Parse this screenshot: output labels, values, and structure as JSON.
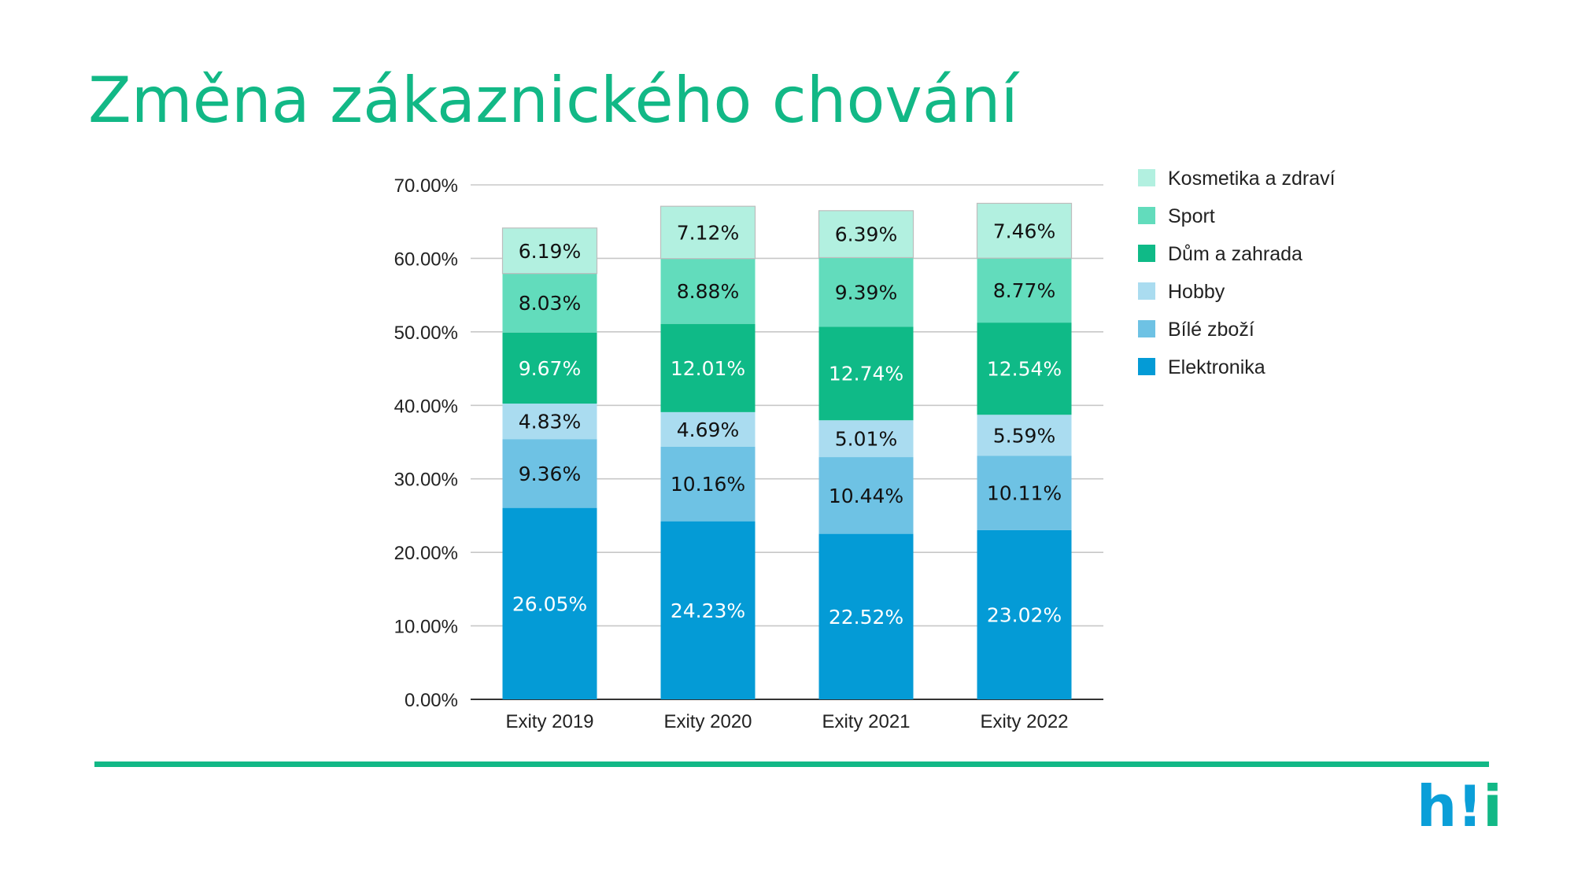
{
  "slide": {
    "title": "Změna zákaznického chování",
    "logo": {
      "h": "h",
      "bang": "!",
      "i": "i"
    }
  },
  "colors": {
    "title": "#12b886",
    "rule": "#12b886",
    "Elektronika": "#049bd6",
    "Bílé zboží": "#6ec2e4",
    "Hobby": "#aadcf0",
    "Dům a zahrada": "#0fba87",
    "Sport": "#62dcbc",
    "Kosmetika a zdraví": "#b2f0e0"
  },
  "chart_data": {
    "type": "bar",
    "stacked": true,
    "categories": [
      "Exity 2019",
      "Exity 2020",
      "Exity 2021",
      "Exity 2022"
    ],
    "series": [
      {
        "name": "Elektronika",
        "values": [
          26.05,
          24.23,
          22.52,
          23.02
        ],
        "labels": [
          "26.05%",
          "24.23%",
          "22.52%",
          "23.02%"
        ],
        "label_color": "#ffffff"
      },
      {
        "name": "Bílé zboží",
        "values": [
          9.36,
          10.16,
          10.44,
          10.11
        ],
        "labels": [
          "9.36%",
          "10.16%",
          "10.44%",
          "10.11%"
        ],
        "label_color": "#111111"
      },
      {
        "name": "Hobby",
        "values": [
          4.83,
          4.69,
          5.01,
          5.59
        ],
        "labels": [
          "4.83%",
          "4.69%",
          "5.01%",
          "5.59%"
        ],
        "label_color": "#111111"
      },
      {
        "name": "Dům a zahrada",
        "values": [
          9.67,
          12.01,
          12.74,
          12.54
        ],
        "labels": [
          "9.67%",
          "12.01%",
          "12.74%",
          "12.54%"
        ],
        "label_color": "#ffffff"
      },
      {
        "name": "Sport",
        "values": [
          8.03,
          8.88,
          9.39,
          8.77
        ],
        "labels": [
          "8.03%",
          "8.88%",
          "9.39%",
          "8.77%"
        ],
        "label_color": "#111111"
      },
      {
        "name": "Kosmetika a zdraví",
        "values": [
          6.19,
          7.12,
          6.39,
          7.46
        ],
        "labels": [
          "6.19%",
          "7.12%",
          "6.39%",
          "7.46%"
        ],
        "label_color": "#111111"
      }
    ],
    "yticks": [
      0,
      10,
      20,
      30,
      40,
      50,
      60,
      70
    ],
    "ytick_labels": [
      "0.00%",
      "10.00%",
      "20.00%",
      "30.00%",
      "40.00%",
      "50.00%",
      "60.00%",
      "70.00%"
    ],
    "ylim": [
      0,
      70
    ],
    "grid": true,
    "legend_position": "right",
    "legend_order": [
      "Kosmetika a zdraví",
      "Sport",
      "Dům a zahrada",
      "Hobby",
      "Bílé zboží",
      "Elektronika"
    ]
  }
}
